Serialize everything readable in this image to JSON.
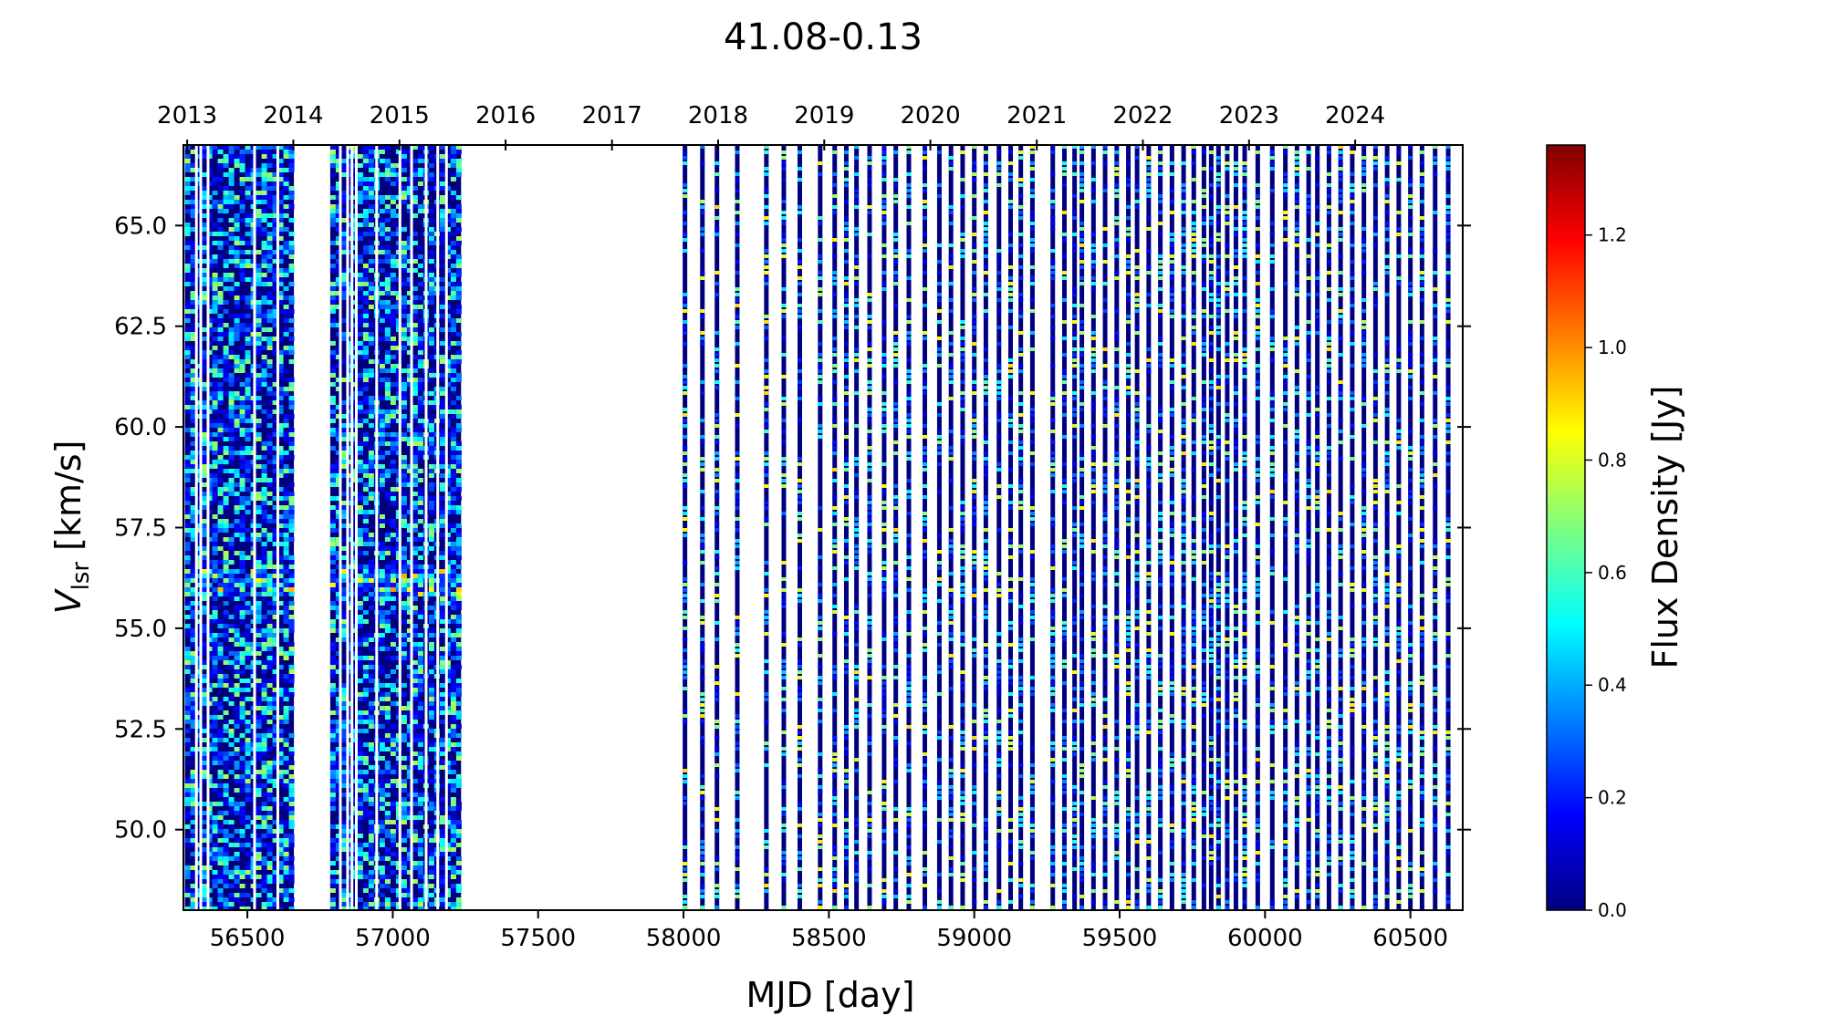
{
  "chart_data": {
    "type": "heatmap",
    "title": "41.08-0.13",
    "xlabel": "MJD [day]",
    "ylabel": "V",
    "ylabel_sub": "lsr",
    "ylabel_unit": " [km/s]",
    "colorbar_label": "Flux Density [Jy]",
    "colormap": "jet",
    "colormap_stops": [
      "#00007f",
      "#0000ff",
      "#007fff",
      "#00ffff",
      "#7fff7f",
      "#ffff00",
      "#ff7f00",
      "#ff0000",
      "#7f0000"
    ],
    "xlim": [
      56280,
      60680
    ],
    "ylim": [
      48.0,
      67.0
    ],
    "clim": [
      0.0,
      1.36
    ],
    "x_ticks": [
      56500,
      57000,
      57500,
      58000,
      58500,
      59000,
      59500,
      60000,
      60500
    ],
    "x_tick_labels": [
      "56500",
      "57000",
      "57500",
      "58000",
      "58500",
      "59000",
      "59500",
      "60000",
      "60500"
    ],
    "y_ticks": [
      50.0,
      52.5,
      55.0,
      57.5,
      60.0,
      62.5,
      65.0
    ],
    "y_tick_labels": [
      "50.0",
      "52.5",
      "55.0",
      "57.5",
      "60.0",
      "62.5",
      "65.0"
    ],
    "top_axis_ticks": [
      56293,
      56658,
      57023,
      57388,
      57754,
      58119,
      58484,
      58849,
      59215,
      59580,
      59945,
      60310
    ],
    "top_axis_labels": [
      "2013",
      "2014",
      "2015",
      "2016",
      "2017",
      "2018",
      "2019",
      "2020",
      "2021",
      "2022",
      "2023",
      "2024"
    ],
    "colorbar_ticks": [
      0.0,
      0.2,
      0.4,
      0.6,
      0.8,
      1.0,
      1.2
    ],
    "colorbar_tick_labels": [
      "0.0",
      "0.2",
      "0.4",
      "0.6",
      "0.8",
      "1.0",
      "1.2"
    ],
    "dense_coverage": [
      {
        "start": 56285,
        "end": 56660
      },
      {
        "start": 56785,
        "end": 57235
      }
    ],
    "dense_gaps": [
      56320,
      56335,
      56360,
      56520,
      56600,
      56815,
      56840,
      56855,
      56870,
      56940,
      57020,
      57060,
      57110,
      57150,
      57180
    ],
    "observation_epochs": [
      58005,
      58065,
      58115,
      58185,
      58285,
      58345,
      58400,
      58470,
      58520,
      58560,
      58595,
      58640,
      58690,
      58730,
      58775,
      58830,
      58880,
      58920,
      58960,
      59000,
      59040,
      59085,
      59125,
      59160,
      59200,
      59270,
      59310,
      59345,
      59370,
      59410,
      59450,
      59490,
      59530,
      59560,
      59600,
      59640,
      59680,
      59720,
      59755,
      59790,
      59815,
      59840,
      59870,
      59900,
      59930,
      59975,
      60025,
      60070,
      60110,
      60150,
      60180,
      60220,
      60260,
      60300,
      60340,
      60380,
      60420,
      60460,
      60500,
      60540,
      60585,
      60630
    ]
  }
}
